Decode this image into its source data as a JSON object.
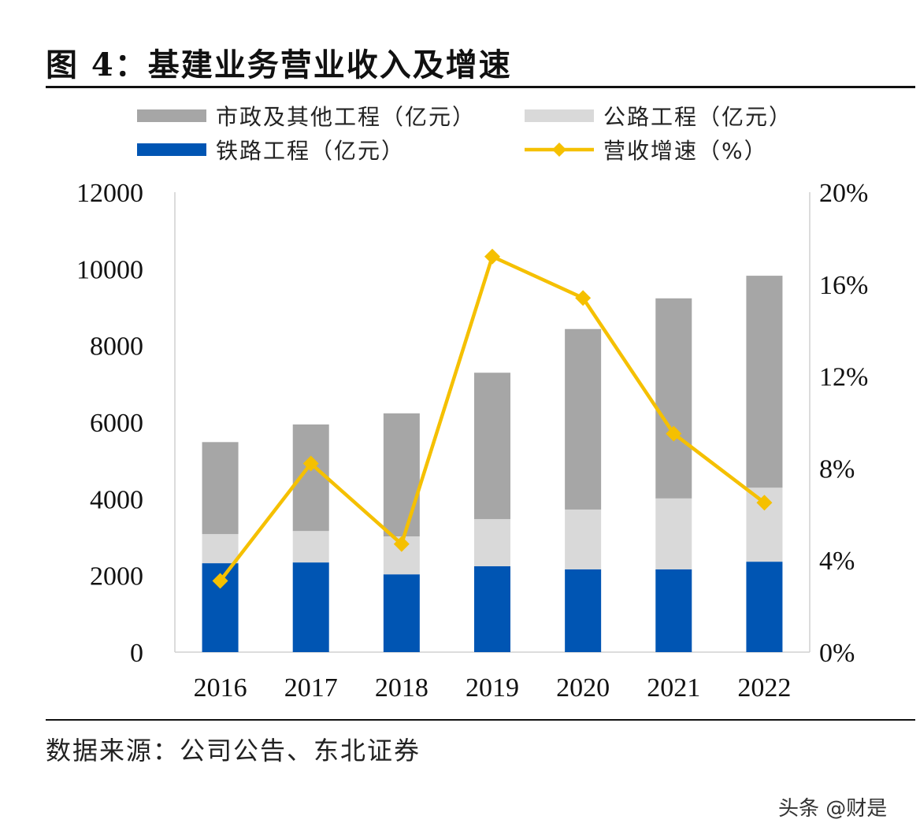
{
  "title": "图 4：基建业务营业收入及增速",
  "source": "数据来源：公司公告、东北证券",
  "watermark": "头条 @财是",
  "chart_data": {
    "type": "bar",
    "stacked": true,
    "categories": [
      "2016",
      "2017",
      "2018",
      "2019",
      "2020",
      "2021",
      "2022"
    ],
    "series": [
      {
        "name": "铁路工程（亿元）",
        "type": "bar",
        "axis": "left",
        "color": "#0055b3",
        "values": [
          2320,
          2340,
          2030,
          2240,
          2160,
          2160,
          2360
        ]
      },
      {
        "name": "公路工程（亿元）",
        "type": "bar",
        "axis": "left",
        "color": "#d9d9d9",
        "values": [
          760,
          820,
          990,
          1230,
          1560,
          1850,
          1930
        ]
      },
      {
        "name": "市政及其他工程（亿元）",
        "type": "bar",
        "axis": "left",
        "color": "#a6a6a6",
        "values": [
          2400,
          2780,
          3210,
          3820,
          4710,
          5220,
          5530
        ]
      },
      {
        "name": "营收增速（%）",
        "type": "line",
        "axis": "right",
        "color": "#f5c000",
        "marker": "diamond",
        "values": [
          3.1,
          8.2,
          4.7,
          17.2,
          15.4,
          9.5,
          6.5
        ]
      }
    ],
    "legend_order": [
      "市政及其他工程（亿元）",
      "公路工程（亿元）",
      "铁路工程（亿元）",
      "营收增速（%）"
    ],
    "legend_placement": "top",
    "y_left": {
      "ylim": [
        0,
        12000
      ],
      "ticks": [
        "0",
        "2000",
        "4000",
        "6000",
        "8000",
        "10000",
        "12000"
      ]
    },
    "y_right": {
      "ylim": [
        0,
        20
      ],
      "ticks": [
        "0%",
        "4%",
        "8%",
        "12%",
        "16%",
        "20%"
      ]
    },
    "grid": false
  }
}
